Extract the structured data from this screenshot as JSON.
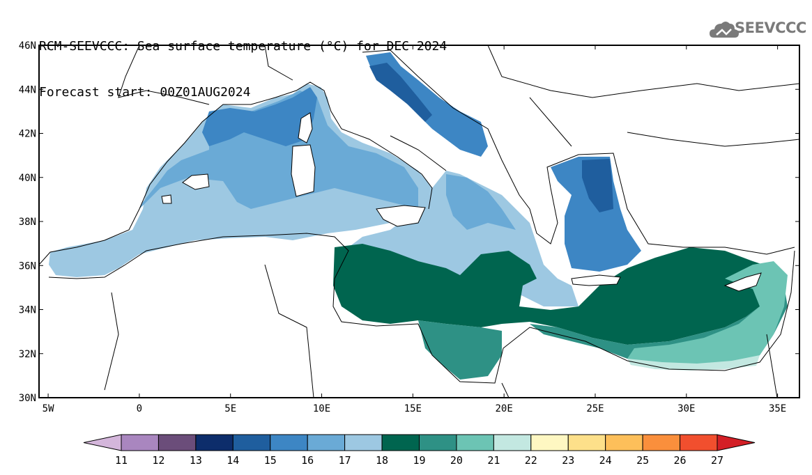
{
  "title": {
    "line1": "RCM-SEEVCCC: Sea surface temperature (°C) for DEC 2024",
    "line2": "Forecast start: 00Z01AUG2024"
  },
  "logo": {
    "text": "SEEVCCC",
    "icon": "cloud-icon",
    "color": "#7a7a7a"
  },
  "map": {
    "lat_range": [
      30,
      46
    ],
    "lon_range": [
      -5.5,
      36.2
    ],
    "lat_ticks": [
      {
        "value": 46,
        "label": "46N"
      },
      {
        "value": 44,
        "label": "44N"
      },
      {
        "value": 42,
        "label": "42N"
      },
      {
        "value": 40,
        "label": "40N"
      },
      {
        "value": 38,
        "label": "38N"
      },
      {
        "value": 36,
        "label": "36N"
      },
      {
        "value": 34,
        "label": "34N"
      },
      {
        "value": 32,
        "label": "32N"
      },
      {
        "value": 30,
        "label": "30N"
      }
    ],
    "lon_ticks": [
      {
        "value": -5,
        "label": "5W"
      },
      {
        "value": 0,
        "label": "0"
      },
      {
        "value": 5,
        "label": "5E"
      },
      {
        "value": 10,
        "label": "10E"
      },
      {
        "value": 15,
        "label": "15E"
      },
      {
        "value": 20,
        "label": "20E"
      },
      {
        "value": 25,
        "label": "25E"
      },
      {
        "value": 30,
        "label": "30E"
      },
      {
        "value": 35,
        "label": "35E"
      }
    ]
  },
  "colorbar": {
    "labels": [
      "11",
      "12",
      "13",
      "14",
      "15",
      "16",
      "17",
      "18",
      "19",
      "20",
      "21",
      "22",
      "23",
      "24",
      "25",
      "26",
      "27"
    ],
    "colors": [
      "#d4b6db",
      "#a986bf",
      "#6b4d7a",
      "#0d2d6b",
      "#1f5e9e",
      "#3d86c4",
      "#6aaad6",
      "#9dc8e2",
      "#00654f",
      "#2e9185",
      "#6cc4b4",
      "#c3e8e1",
      "#fef7c2",
      "#fde08a",
      "#fdbf5a",
      "#fa8f3c",
      "#f14f2e",
      "#d31f26"
    ]
  },
  "regions": [
    {
      "name": "west-med-base",
      "temp_class": "17",
      "color": "#9dc8e2"
    },
    {
      "name": "ligurian-tyrrhenian",
      "temp_class": "16",
      "color": "#6aaad6"
    },
    {
      "name": "gulf-of-lion",
      "temp_class": "15",
      "color": "#3d86c4"
    },
    {
      "name": "adriatic-south",
      "temp_class": "15",
      "color": "#3d86c4"
    },
    {
      "name": "adriatic-north",
      "temp_class": "14",
      "color": "#1f5e9e"
    },
    {
      "name": "aegean",
      "temp_class": "15",
      "color": "#3d86c4"
    },
    {
      "name": "aegean-north",
      "temp_class": "14",
      "color": "#1f5e9e"
    },
    {
      "name": "central-south",
      "temp_class": "18",
      "color": "#00654f"
    },
    {
      "name": "gulf-of-sidra",
      "temp_class": "19",
      "color": "#2e9185"
    },
    {
      "name": "levantine",
      "temp_class": "18",
      "color": "#00654f"
    },
    {
      "name": "levantine-south",
      "temp_class": "19",
      "color": "#2e9185"
    },
    {
      "name": "levantine-east",
      "temp_class": "20",
      "color": "#6cc4b4"
    },
    {
      "name": "nile-coast",
      "temp_class": "21",
      "color": "#c3e8e1"
    }
  ]
}
